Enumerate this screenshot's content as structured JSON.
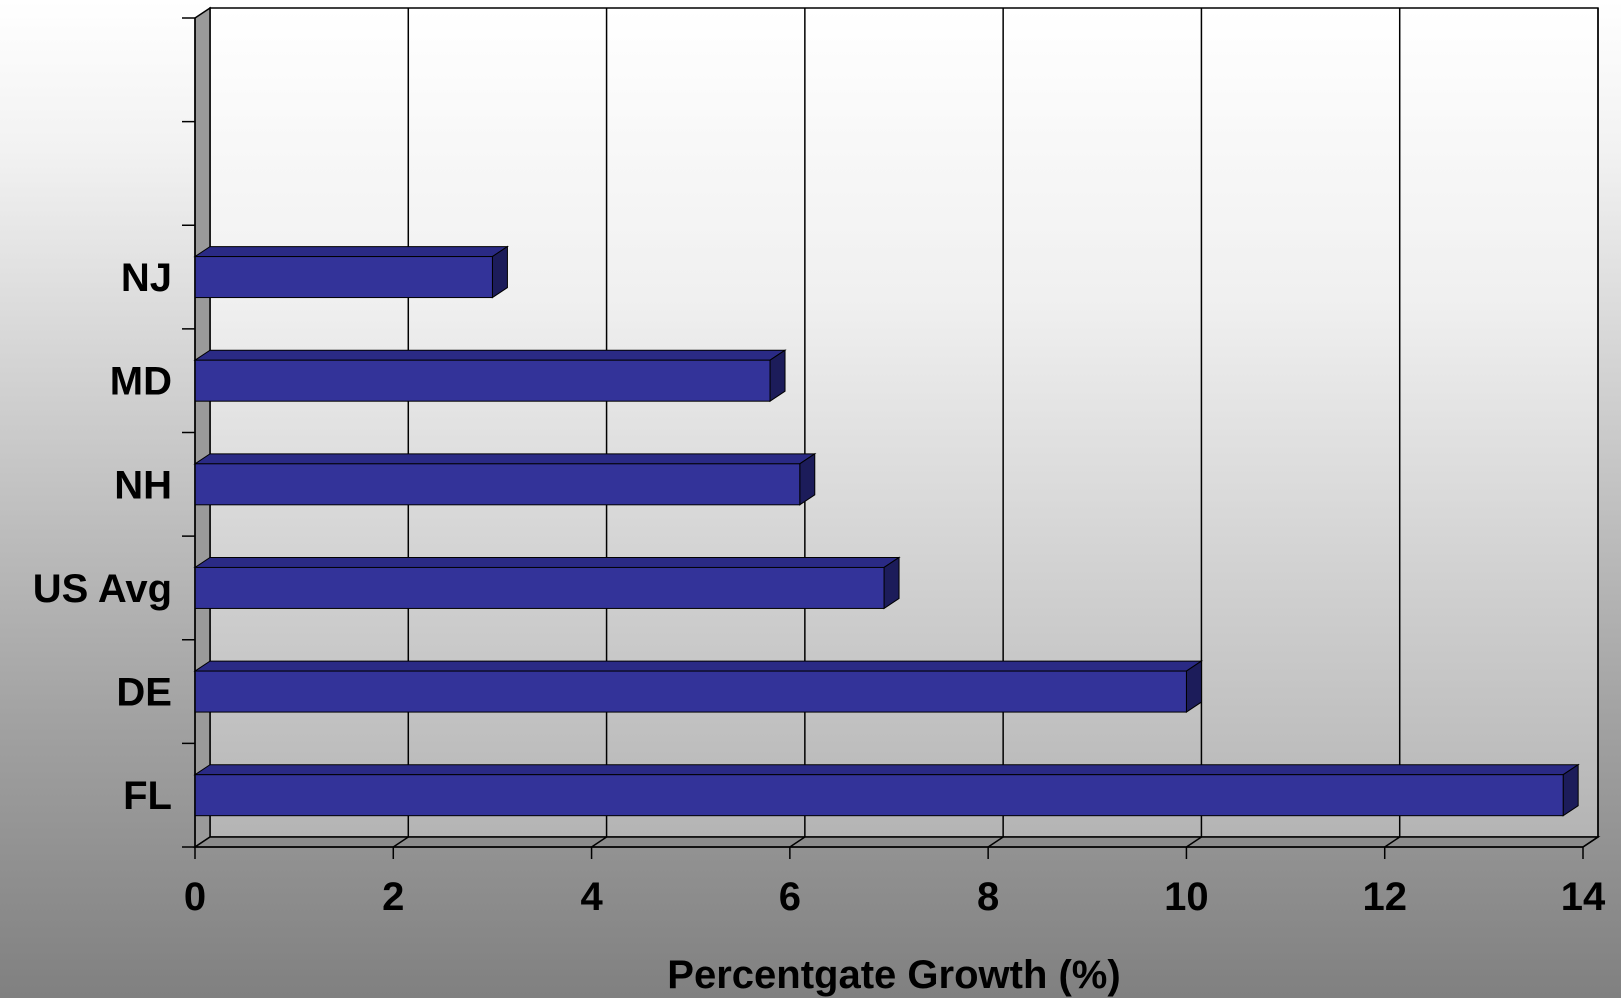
{
  "chart_data": {
    "type": "bar",
    "orientation": "horizontal",
    "style": "3d",
    "categories": [
      "FL",
      "DE",
      "US Avg",
      "NH",
      "MD",
      "NJ"
    ],
    "values": [
      13.8,
      10.0,
      6.95,
      6.1,
      5.8,
      3.0
    ],
    "xlabel": "Percentgate Growth (%)",
    "ylabel": "",
    "xlim": [
      0,
      14
    ],
    "xticks": [
      0,
      2,
      4,
      6,
      8,
      10,
      12,
      14
    ],
    "grid": "vertical",
    "legend": "none",
    "colors": {
      "bar_front": "#333399",
      "bar_top": "#2a2a85",
      "bar_side": "#1c1c5a",
      "wall_left": "#9a9a9a",
      "floor": "#8c8c8c",
      "plot_wall": "#ffffff"
    }
  }
}
